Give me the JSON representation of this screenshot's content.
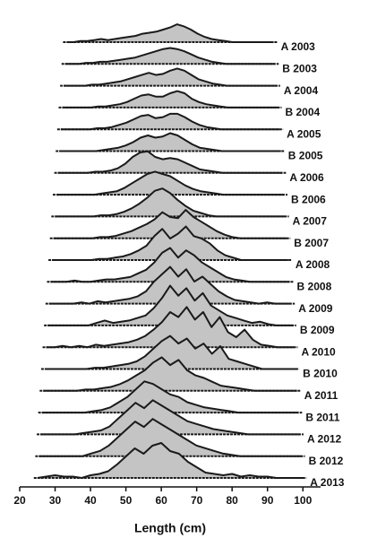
{
  "chart_data": {
    "type": "ridgeline",
    "xlabel": "Length (cm)",
    "xlim": [
      20,
      105
    ],
    "xticks": [
      20,
      30,
      40,
      50,
      60,
      70,
      80,
      90,
      100
    ],
    "line_color": "#1a1a1a",
    "fill_color": "#c4c4c4",
    "x": [
      25,
      27.5,
      30,
      32.5,
      35,
      37.5,
      40,
      42.5,
      45,
      47.5,
      50,
      52.5,
      55,
      57.5,
      60,
      62.5,
      65,
      67.5,
      70,
      72.5,
      75,
      77.5,
      80,
      82.5,
      85,
      87.5,
      90,
      92.5,
      95,
      97.5,
      100
    ],
    "series": [
      {
        "name": "A 2003",
        "values": [
          0,
          0,
          0.5,
          0.5,
          1,
          1.5,
          1,
          1.5,
          2,
          2.5,
          3,
          4,
          4.5,
          5,
          6,
          7,
          8.5,
          7.5,
          6,
          4,
          2.5,
          1.5,
          1,
          0.5,
          0,
          0,
          0,
          0,
          0,
          0,
          0
        ]
      },
      {
        "name": "B 2003",
        "values": [
          0,
          0,
          0,
          0.5,
          0.5,
          1,
          1,
          1.5,
          2,
          2.5,
          3,
          4,
          5,
          6,
          7,
          7.5,
          7,
          6,
          4.5,
          3,
          2,
          1,
          0.5,
          0,
          0,
          0,
          0,
          0,
          0,
          0,
          0
        ]
      },
      {
        "name": "A 2004",
        "values": [
          0,
          0,
          0,
          0,
          0.5,
          0.5,
          1,
          1.5,
          2,
          3,
          4,
          5,
          6,
          5,
          5.5,
          7,
          8,
          7,
          5,
          3,
          2,
          1,
          0.5,
          0,
          0,
          0,
          0,
          0,
          0,
          0,
          0
        ]
      },
      {
        "name": "B 2004",
        "values": [
          0,
          0,
          0,
          0,
          0,
          0.5,
          0.5,
          1,
          1.5,
          2.5,
          4,
          5.5,
          6,
          5,
          5,
          6.5,
          7.5,
          6.5,
          4,
          2.5,
          1.5,
          1,
          0.5,
          0,
          0,
          0,
          0,
          0,
          0,
          0,
          0
        ]
      },
      {
        "name": "A 2005",
        "values": [
          0,
          0,
          0,
          0,
          0,
          0.5,
          0.5,
          1,
          2,
          3,
          4.5,
          6,
          6.5,
          5,
          5.5,
          7,
          7,
          5.5,
          3.5,
          2,
          1,
          0.5,
          0,
          0,
          0,
          0,
          0,
          0,
          0,
          0,
          0
        ]
      },
      {
        "name": "B 2005",
        "values": [
          0,
          0,
          0,
          0,
          0,
          0,
          0.5,
          1,
          1.5,
          2.5,
          4,
          6,
          7,
          6,
          6.5,
          8,
          7,
          5,
          3,
          1.5,
          1,
          0.5,
          0,
          0,
          0,
          0,
          0,
          0,
          0,
          0,
          0
        ]
      },
      {
        "name": "A 2006",
        "values": [
          0,
          0,
          0,
          0,
          0,
          0.5,
          0.5,
          1,
          2,
          4,
          7,
          9,
          9.5,
          7,
          6,
          6.5,
          6,
          4.5,
          3,
          1.5,
          1,
          0.5,
          0,
          0,
          0,
          0,
          0,
          0,
          0,
          0,
          0
        ]
      },
      {
        "name": "B 2006",
        "values": [
          0,
          0,
          0,
          0,
          0,
          0,
          0.5,
          1,
          1.5,
          3,
          5,
          7,
          9,
          10,
          9,
          8,
          6,
          4,
          2.5,
          1.5,
          1,
          0.5,
          0,
          0,
          0,
          0,
          0,
          0,
          0,
          0,
          0
        ]
      },
      {
        "name": "A 2007",
        "values": [
          0,
          0,
          0,
          0,
          0,
          0,
          0.5,
          0.5,
          1,
          2,
          3.5,
          5.5,
          8,
          11,
          12,
          10,
          7,
          4.5,
          2.5,
          1.5,
          0.5,
          0,
          0,
          0,
          0,
          0,
          0,
          0,
          0,
          0,
          0
        ]
      },
      {
        "name": "B 2007",
        "values": [
          0,
          0,
          0,
          0,
          0,
          0,
          0.5,
          0.5,
          1,
          2,
          3,
          4.5,
          6,
          8,
          11,
          9,
          8.5,
          12,
          9,
          7,
          5,
          3,
          1.5,
          0.5,
          0,
          0,
          0,
          0,
          0,
          0,
          0
        ]
      },
      {
        "name": "A 2008",
        "values": [
          0,
          0,
          0,
          0,
          0,
          0,
          0.5,
          0.5,
          1,
          1.5,
          2.5,
          4,
          6,
          10,
          13,
          9,
          11,
          14,
          10,
          9,
          7,
          4,
          2,
          1,
          0,
          0,
          0,
          0,
          0,
          0,
          0
        ]
      },
      {
        "name": "B 2008",
        "values": [
          0,
          0,
          0,
          0.5,
          0,
          0,
          0.5,
          1,
          1,
          1.5,
          2,
          3.5,
          5,
          8,
          12,
          14,
          10,
          13,
          11,
          8,
          6,
          4,
          2,
          1,
          0.5,
          0,
          0,
          0,
          0,
          0,
          0
        ]
      },
      {
        "name": "A 2009",
        "values": [
          0,
          0,
          0,
          0,
          0.5,
          0,
          1,
          0.5,
          1,
          1.5,
          2,
          3,
          5,
          9,
          12,
          15,
          11,
          14,
          9,
          11,
          8,
          5,
          3,
          1.5,
          1,
          0.5,
          0,
          0.5,
          0,
          0,
          0
        ]
      },
      {
        "name": "B 2009",
        "values": [
          0,
          0,
          0,
          0,
          0,
          0,
          1,
          2,
          1,
          1.5,
          2,
          3,
          4,
          7,
          11,
          16,
          12,
          15,
          10,
          13,
          8,
          6,
          4,
          3,
          2,
          1,
          1.5,
          0.5,
          0,
          0,
          0
        ]
      },
      {
        "name": "A 2010",
        "values": [
          0,
          0,
          0.5,
          0,
          0.5,
          0,
          1,
          0.5,
          1,
          1.5,
          2,
          3,
          4.5,
          7,
          10,
          14,
          12,
          16,
          11,
          14,
          8,
          12,
          6,
          4,
          7,
          3,
          1,
          0.5,
          0,
          0,
          0
        ]
      },
      {
        "name": "B 2010",
        "values": [
          0,
          0,
          0,
          0,
          0,
          0,
          0.5,
          0.5,
          1,
          1.5,
          2,
          3,
          5,
          8,
          11,
          13,
          10,
          12,
          8,
          10,
          6,
          9,
          4,
          3,
          2,
          1,
          0,
          0,
          0,
          0,
          0
        ]
      },
      {
        "name": "A 2011",
        "values": [
          0,
          0,
          0,
          0,
          0,
          0.5,
          0.5,
          1,
          1.5,
          2.5,
          4,
          6,
          8,
          11,
          13,
          10,
          12,
          8,
          6,
          5,
          3.5,
          2,
          1.5,
          1,
          0.5,
          0,
          0,
          0,
          0,
          0,
          0
        ]
      },
      {
        "name": "B 2011",
        "values": [
          0,
          0,
          0,
          0,
          0,
          0,
          0.5,
          1,
          2,
          4,
          6,
          9,
          12,
          11,
          9,
          7,
          6,
          4,
          3,
          2,
          1.5,
          1,
          0.5,
          0,
          0,
          0,
          0,
          0,
          0,
          0,
          0
        ]
      },
      {
        "name": "A 2012",
        "values": [
          0,
          0,
          0,
          0,
          0,
          0.5,
          1,
          1.5,
          3,
          6,
          9,
          12,
          10,
          13,
          11,
          9,
          7,
          5,
          4,
          3,
          2,
          1.5,
          1,
          0.5,
          0,
          0,
          0,
          0,
          0,
          0,
          0
        ]
      },
      {
        "name": "B 2012",
        "values": [
          0,
          0,
          0,
          0,
          0,
          0,
          1,
          2,
          4,
          7,
          10,
          13,
          11,
          14,
          12,
          10,
          8,
          6,
          4,
          3,
          2,
          1,
          0.5,
          0,
          0,
          0,
          0,
          0,
          0,
          0,
          0
        ]
      },
      {
        "name": "A 2013",
        "values": [
          0,
          0.5,
          1,
          0.5,
          0.5,
          0,
          1,
          1.5,
          2.5,
          5,
          8,
          11,
          9,
          12,
          13,
          10,
          9,
          6,
          4,
          2,
          1.5,
          1,
          1.5,
          0.5,
          1,
          0.5,
          0.5,
          0,
          0,
          0,
          0
        ]
      }
    ]
  }
}
